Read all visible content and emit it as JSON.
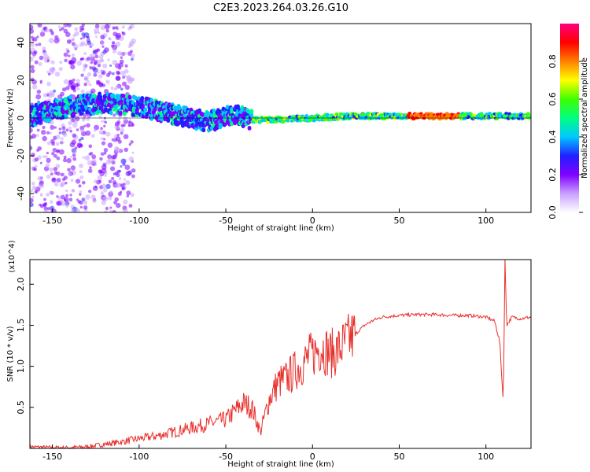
{
  "figure_title": "C2E3.2023.264.03.26.G10",
  "chart_data": [
    {
      "type": "heatmap",
      "name": "spectrogram",
      "xlabel": "Height of straight line (km)",
      "ylabel": "Frequency (Hz)",
      "xlim": [
        -163,
        126
      ],
      "ylim": [
        -50,
        50
      ],
      "xticks": [
        -150,
        -100,
        -50,
        0,
        50,
        100
      ],
      "yticks": [
        -40,
        -20,
        0,
        20,
        40
      ],
      "colorbar": {
        "label": "Normalized spectral amplitude",
        "range": [
          0,
          1
        ],
        "ticks": [
          0.0,
          0.2,
          0.4,
          0.6,
          0.8
        ],
        "colormap": [
          "#ffffff",
          "#c8a0ff",
          "#8000ff",
          "#2020ff",
          "#00c8ff",
          "#00ff80",
          "#40ff00",
          "#ffff00",
          "#ff8000",
          "#ff0000",
          "#ff0080"
        ]
      },
      "trace_center_hz": [
        {
          "x": -160,
          "y": 2
        },
        {
          "x": -140,
          "y": 6
        },
        {
          "x": -120,
          "y": 8
        },
        {
          "x": -100,
          "y": 6
        },
        {
          "x": -80,
          "y": 2
        },
        {
          "x": -60,
          "y": -2
        },
        {
          "x": -45,
          "y": 2
        },
        {
          "x": -35,
          "y": -1
        },
        {
          "x": -20,
          "y": -1
        },
        {
          "x": 0,
          "y": 0
        },
        {
          "x": 20,
          "y": 1
        },
        {
          "x": 50,
          "y": 1
        },
        {
          "x": 80,
          "y": 1
        },
        {
          "x": 100,
          "y": 1
        },
        {
          "x": 126,
          "y": 1
        }
      ]
    },
    {
      "type": "line",
      "name": "snr",
      "xlabel": "Height of straight line (km)",
      "ylabel": "SNR (10 * v/v)",
      "y_multiplier": "(x10^4)",
      "xlim": [
        -163,
        126
      ],
      "ylim": [
        0,
        2.3
      ],
      "xticks": [
        -150,
        -100,
        -50,
        0,
        50,
        100
      ],
      "yticks": [
        0.5,
        1.0,
        1.5,
        2.0
      ],
      "ytick_labels": [
        "0.5",
        "1.0",
        "1.5",
        "2.0"
      ],
      "line_color": "#e8302c",
      "x": [
        -163,
        -150,
        -140,
        -130,
        -120,
        -110,
        -100,
        -90,
        -80,
        -70,
        -60,
        -50,
        -45,
        -40,
        -35,
        -30,
        -25,
        -20,
        -15,
        -10,
        -5,
        0,
        5,
        10,
        15,
        20,
        25,
        30,
        35,
        40,
        50,
        60,
        70,
        80,
        90,
        100,
        105,
        108,
        110,
        111,
        112,
        115,
        120,
        126
      ],
      "y": [
        0.02,
        0.01,
        0.01,
        0.02,
        0.05,
        0.08,
        0.12,
        0.15,
        0.2,
        0.25,
        0.3,
        0.35,
        0.45,
        0.55,
        0.5,
        0.2,
        0.6,
        0.8,
        0.85,
        0.95,
        1.05,
        1.15,
        1.25,
        1.15,
        1.2,
        1.3,
        1.4,
        1.5,
        1.56,
        1.6,
        1.62,
        1.63,
        1.63,
        1.62,
        1.62,
        1.6,
        1.55,
        1.3,
        0.55,
        2.3,
        1.5,
        1.6,
        1.58,
        1.6
      ]
    }
  ]
}
